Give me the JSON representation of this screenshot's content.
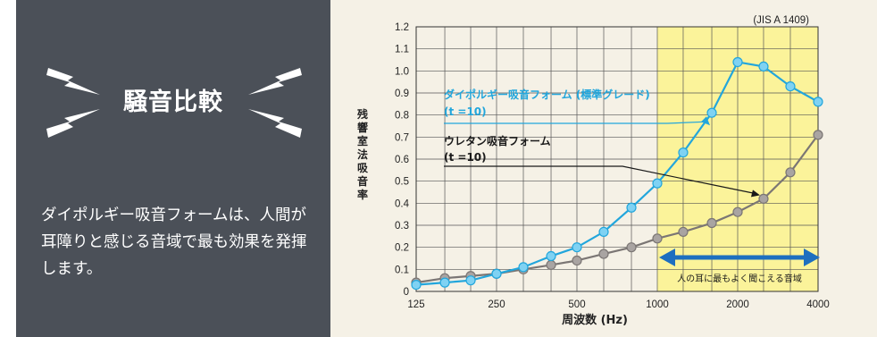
{
  "panel": {
    "heading": "騒音比較",
    "description": "ダイポルギー吸音フォームは、人間が耳障りと感じる音域で最も効果を発揮します。"
  },
  "colors": {
    "left_bg": "#4b5058",
    "chart_bg": "#f5f1e6",
    "highlight": "#fbf39a",
    "series_blue": "#22a6dc",
    "series_gray": "#7b7674",
    "arrow": "#1e6fbf"
  },
  "chart_data": {
    "type": "line",
    "standard": "(JIS A 1409)",
    "ylabel": "残響室法吸音率",
    "xlabel": "周波数 (Hz)",
    "x_ticks": [
      "125",
      "250",
      "500",
      "1000",
      "2000",
      "4000"
    ],
    "x": [
      125,
      160,
      200,
      250,
      315,
      400,
      500,
      630,
      800,
      1000,
      1250,
      1600,
      2000,
      2500,
      3150,
      4000
    ],
    "ylim": [
      0,
      1.2
    ],
    "y_ticks": [
      "0",
      "0.1",
      "0.2",
      "0.3",
      "0.4",
      "0.5",
      "0.6",
      "0.7",
      "0.8",
      "0.9",
      "1.0",
      "1.1",
      "1.2"
    ],
    "grid": true,
    "series": [
      {
        "name": "ダイポルギー吸音フォーム (標準グレード)",
        "thickness": "(t =10)",
        "values": [
          0.03,
          0.04,
          0.05,
          0.08,
          0.11,
          0.16,
          0.2,
          0.27,
          0.38,
          0.49,
          0.63,
          0.81,
          1.04,
          1.02,
          0.93,
          0.86
        ]
      },
      {
        "name": "ウレタン吸音フォーム",
        "thickness": "(t =10)",
        "values": [
          0.04,
          0.06,
          0.07,
          0.08,
          0.1,
          0.12,
          0.14,
          0.17,
          0.2,
          0.24,
          0.27,
          0.31,
          0.36,
          0.42,
          0.54,
          0.71
        ]
      }
    ],
    "highlight_range": [
      1000,
      4000
    ],
    "annotation": "人の耳に最もよく聞こえる音域"
  }
}
